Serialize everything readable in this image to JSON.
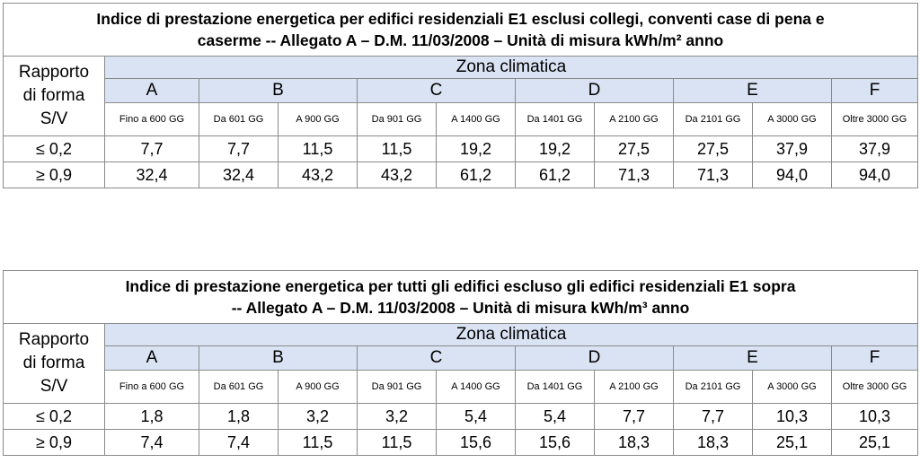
{
  "tables": [
    {
      "title_line1": "Indice di prestazione energetica per edifici residenziali E1 esclusi collegi, conventi case di pena e",
      "title_line2": "caserme -- Allegato A – D.M. 11/03/2008 – Unità di misura kWh/m² anno",
      "rapporto_line1": "Rapporto",
      "rapporto_line2": "di forma",
      "rapporto_line3": "S/V",
      "zona_header": "Zona climatica",
      "zones": [
        "A",
        "B",
        "C",
        "D",
        "E",
        "F"
      ],
      "gg": [
        "Fino a 600 GG",
        "Da 601 GG",
        "A 900 GG",
        "Da 901 GG",
        "A 1400 GG",
        "Da 1401 GG",
        "A 2100 GG",
        "Da 2101 GG",
        "A 3000 GG",
        "Oltre 3000 GG"
      ],
      "rows": [
        {
          "label": "≤ 0,2",
          "values": [
            "7,7",
            "7,7",
            "11,5",
            "11,5",
            "19,2",
            "19,2",
            "27,5",
            "27,5",
            "37,9",
            "37,9"
          ]
        },
        {
          "label": "≥ 0,9",
          "values": [
            "32,4",
            "32,4",
            "43,2",
            "43,2",
            "61,2",
            "61,2",
            "71,3",
            "71,3",
            "94,0",
            "94,0"
          ]
        }
      ]
    },
    {
      "title_line1": "Indice di prestazione energetica per tutti gli edifici escluso gli edifici residenziali E1 sopra",
      "title_line2": "-- Allegato A – D.M. 11/03/2008 – Unità di misura kWh/m³ anno",
      "rapporto_line1": "Rapporto",
      "rapporto_line2": "di forma",
      "rapporto_line3": "S/V",
      "zona_header": "Zona climatica",
      "zones": [
        "A",
        "B",
        "C",
        "D",
        "E",
        "F"
      ],
      "gg": [
        "Fino a 600 GG",
        "Da 601 GG",
        "A 900 GG",
        "Da 901 GG",
        "A 1400 GG",
        "Da 1401 GG",
        "A 2100 GG",
        "Da 2101 GG",
        "A 3000 GG",
        "Oltre 3000 GG"
      ],
      "rows": [
        {
          "label": "≤ 0,2",
          "values": [
            "1,8",
            "1,8",
            "3,2",
            "3,2",
            "5,4",
            "5,4",
            "7,7",
            "7,7",
            "10,3",
            "10,3"
          ]
        },
        {
          "label": "≥ 0,9",
          "values": [
            "7,4",
            "7,4",
            "11,5",
            "11,5",
            "15,6",
            "15,6",
            "18,3",
            "18,3",
            "25,1",
            "25,1"
          ]
        }
      ]
    }
  ]
}
